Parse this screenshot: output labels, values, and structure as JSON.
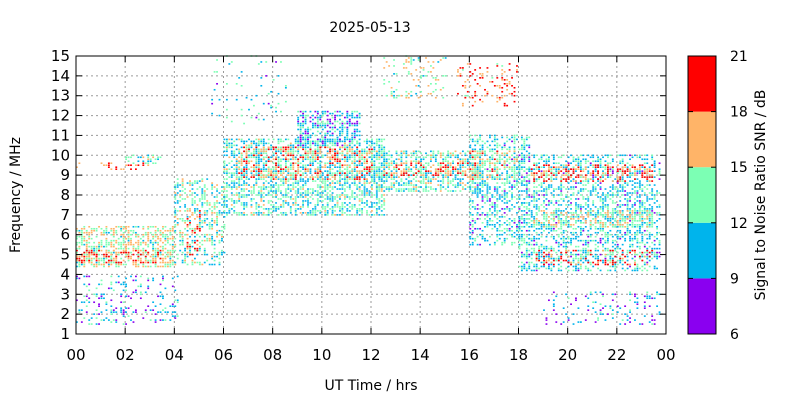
{
  "chart_data": {
    "type": "heatmap",
    "title": "2025-05-13",
    "xlabel": "UT Time / hrs",
    "ylabel": "Frequency / MHz",
    "xlim": [
      0,
      24
    ],
    "ylim": [
      1,
      15
    ],
    "x_ticks": [
      "00",
      "02",
      "04",
      "06",
      "08",
      "10",
      "12",
      "14",
      "16",
      "18",
      "20",
      "22",
      "00"
    ],
    "y_ticks": [
      "1",
      "2",
      "3",
      "4",
      "5",
      "6",
      "7",
      "8",
      "9",
      "10",
      "11",
      "12",
      "13",
      "14",
      "15"
    ],
    "grid": true,
    "colorbar": {
      "label": "Signal to Noise Ratio SNR / dB",
      "range": [
        6,
        21
      ],
      "ticks": [
        "6",
        "9",
        "12",
        "15",
        "18",
        "21"
      ],
      "bands": [
        {
          "from": 6,
          "to": 9,
          "color": "#8a00f0"
        },
        {
          "from": 9,
          "to": 12,
          "color": "#00b4ec"
        },
        {
          "from": 12,
          "to": 15,
          "color": "#7cffb4"
        },
        {
          "from": 15,
          "to": 18,
          "color": "#ffb468"
        },
        {
          "from": 18,
          "to": 21,
          "color": "#ff0000"
        }
      ]
    },
    "clusters": [
      {
        "x": [
          0.0,
          4.0
        ],
        "y": [
          4.4,
          6.4
        ],
        "snr": 14.5,
        "density": 0.55
      },
      {
        "x": [
          0.0,
          3.5
        ],
        "y": [
          4.6,
          5.2
        ],
        "snr": 19.5,
        "density": 0.35
      },
      {
        "x": [
          0.0,
          4.2
        ],
        "y": [
          1.5,
          4.0
        ],
        "snr": 10.5,
        "density": 0.18
      },
      {
        "x": [
          0.0,
          3.0
        ],
        "y": [
          9.3,
          9.7
        ],
        "snr": 18.5,
        "density": 0.3
      },
      {
        "x": [
          2.0,
          3.5
        ],
        "y": [
          9.6,
          10.0
        ],
        "snr": 12.5,
        "density": 0.25
      },
      {
        "x": [
          4.0,
          6.0
        ],
        "y": [
          4.5,
          8.8
        ],
        "snr": 13.0,
        "density": 0.35
      },
      {
        "x": [
          4.5,
          5.0
        ],
        "y": [
          5.0,
          7.5
        ],
        "snr": 19.0,
        "density": 0.3
      },
      {
        "x": [
          6.0,
          12.5
        ],
        "y": [
          7.0,
          10.8
        ],
        "snr": 12.5,
        "density": 0.55
      },
      {
        "x": [
          6.5,
          12.0
        ],
        "y": [
          8.8,
          10.4
        ],
        "snr": 18.0,
        "density": 0.28
      },
      {
        "x": [
          9.0,
          11.5
        ],
        "y": [
          10.5,
          12.2
        ],
        "snr": 10.5,
        "density": 0.5
      },
      {
        "x": [
          12.0,
          16.5
        ],
        "y": [
          8.2,
          10.2
        ],
        "snr": 13.0,
        "density": 0.55
      },
      {
        "x": [
          12.5,
          16.5
        ],
        "y": [
          9.0,
          9.6
        ],
        "snr": 18.5,
        "density": 0.3
      },
      {
        "x": [
          16.0,
          18.5
        ],
        "y": [
          5.5,
          11.0
        ],
        "snr": 11.5,
        "density": 0.4
      },
      {
        "x": [
          16.0,
          18.0
        ],
        "y": [
          8.8,
          10.2
        ],
        "snr": 15.5,
        "density": 0.4
      },
      {
        "x": [
          18.0,
          23.8
        ],
        "y": [
          4.2,
          10.0
        ],
        "snr": 11.5,
        "density": 0.42
      },
      {
        "x": [
          18.5,
          23.5
        ],
        "y": [
          8.7,
          9.5
        ],
        "snr": 19.0,
        "density": 0.35
      },
      {
        "x": [
          18.5,
          23.5
        ],
        "y": [
          6.4,
          7.2
        ],
        "snr": 14.5,
        "density": 0.45
      },
      {
        "x": [
          18.5,
          23.5
        ],
        "y": [
          4.5,
          5.2
        ],
        "snr": 19.0,
        "density": 0.22
      },
      {
        "x": [
          19.0,
          23.8
        ],
        "y": [
          1.5,
          3.2
        ],
        "snr": 10.0,
        "density": 0.15
      },
      {
        "x": [
          12.5,
          15.0
        ],
        "y": [
          12.9,
          15.0
        ],
        "snr": 14.5,
        "density": 0.15
      },
      {
        "x": [
          15.5,
          18.0
        ],
        "y": [
          12.5,
          14.6
        ],
        "snr": 17.5,
        "density": 0.2
      },
      {
        "x": [
          5.5,
          8.5
        ],
        "y": [
          11.5,
          15.0
        ],
        "snr": 11.0,
        "density": 0.05
      }
    ]
  }
}
